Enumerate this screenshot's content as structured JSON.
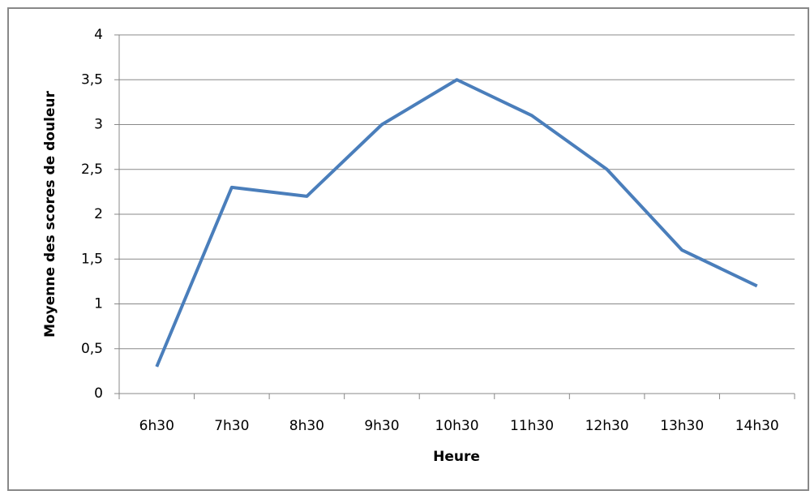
{
  "chart_data": {
    "type": "line",
    "x_label": "Heure",
    "y_label": "Moyenne des scores de douleur",
    "categories": [
      "6h30",
      "7h30",
      "8h30",
      "9h30",
      "10h30",
      "11h30",
      "12h30",
      "13h30",
      "14h30"
    ],
    "values": [
      0.3,
      2.3,
      2.2,
      3.0,
      3.5,
      3.1,
      2.5,
      1.6,
      1.2
    ],
    "color": "#4a7ebb",
    "ylim": [
      0,
      4
    ],
    "yticks": [
      0,
      {
        "value": 0.5,
        "label": "0,5"
      },
      1,
      {
        "value": 1.5,
        "label": "1,5"
      },
      2,
      {
        "value": 2.5,
        "label": "2,5"
      },
      3,
      {
        "value": 3.5,
        "label": "3,5"
      },
      4
    ],
    "grid": true
  }
}
